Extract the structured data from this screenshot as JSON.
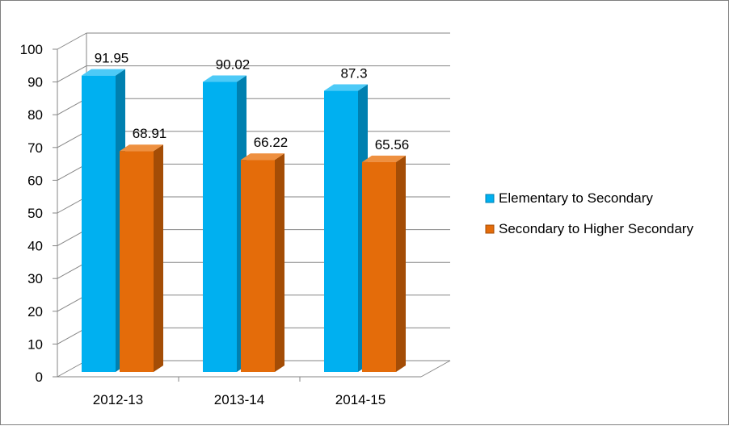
{
  "chart_data": {
    "type": "bar",
    "title": "",
    "xlabel": "",
    "ylabel": "",
    "categories": [
      "2012-13",
      "2013-14",
      "2014-15"
    ],
    "series": [
      {
        "name": "Elementary to Secondary",
        "values": [
          91.95,
          90.02,
          87.3
        ],
        "value_labels": [
          "91.95",
          "90.02",
          "87.3"
        ],
        "color": "#00b0f0",
        "side_color": "#0080b0",
        "top_color": "#4dcaf7"
      },
      {
        "name": "Secondary to Higher Secondary",
        "values": [
          68.91,
          66.22,
          65.56
        ],
        "value_labels": [
          "68.91",
          "66.22",
          "65.56"
        ],
        "color": "#e46c0a",
        "side_color": "#a44d06",
        "top_color": "#ee9040"
      }
    ],
    "ylim": [
      0,
      100
    ],
    "yticks": [
      0,
      10,
      20,
      30,
      40,
      50,
      60,
      70,
      80,
      90,
      100
    ],
    "grid": true,
    "legend_position": "right",
    "style": "3d-column"
  }
}
